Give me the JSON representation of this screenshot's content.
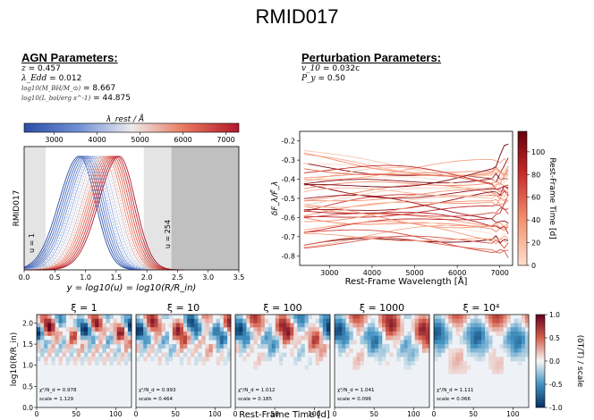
{
  "title": "RMID017",
  "agn": {
    "heading": "AGN Parameters:",
    "rows": [
      {
        "label": "z",
        "value": "= 0.457"
      },
      {
        "label": "λ_Edd",
        "value": "= 0.012"
      },
      {
        "label": "log10(M_BH/M_⊙)",
        "value": "= 8.667"
      },
      {
        "label": "log10(L_bol/erg s^-1)",
        "value": "= 44.875"
      }
    ]
  },
  "perturbation": {
    "heading": "Perturbation Parameters:",
    "rows": [
      {
        "label": "v_10",
        "value": "= 0.032c"
      },
      {
        "label": "P_y",
        "value": "= 0.50"
      }
    ]
  },
  "colors": {
    "blue": "#2b4fa5",
    "red": "#b2182b",
    "dark_red": "#67000d",
    "grey": "#c0c0c0",
    "light_grey": "#e4e4e4"
  },
  "chart_data": [
    {
      "type": "line",
      "name": "response-kernels",
      "title": "",
      "colorbar_label": "λ_rest / Å",
      "colorbar_ticks": [
        "3000",
        "4000",
        "5000",
        "6000",
        "7000"
      ],
      "colorbar_range": [
        2300,
        7300
      ],
      "xlabel": "y = log10(u) = log10(R/R_in)",
      "ylabel": "RMID017",
      "xlim": [
        0.0,
        3.5
      ],
      "xticks": [
        "0.0",
        "0.5",
        "1.0",
        "1.5",
        "2.0",
        "2.5",
        "3.0",
        "3.5"
      ],
      "annotations": [
        "u = 1",
        "u = 254"
      ],
      "shaded_regions": [
        {
          "from": 0.0,
          "to": 0.35,
          "shade": "light"
        },
        {
          "from": 1.95,
          "to": 2.4,
          "shade": "light"
        },
        {
          "from": 2.4,
          "to": 3.5,
          "shade": "dark"
        }
      ],
      "curves": {
        "count": 20,
        "peak_y_min": 0.9,
        "peak_y_max": 1.55,
        "lambda_min": 2300,
        "lambda_max": 7300
      }
    },
    {
      "type": "line",
      "name": "perturbation-spectra",
      "xlabel": "Rest-Frame Wavelength [Å]",
      "ylabel": "δF_λ/F̄_λ",
      "xlim": [
        2300,
        7300
      ],
      "ylim": [
        -0.85,
        -0.15
      ],
      "xticks": [
        "3000",
        "4000",
        "5000",
        "6000",
        "7000"
      ],
      "yticks": [
        "-0.2",
        "-0.3",
        "-0.4",
        "-0.5",
        "-0.6",
        "-0.7",
        "-0.8"
      ],
      "colorbar_label": "Rest-Frame Time [d]",
      "colorbar_range": [
        0,
        118
      ],
      "colorbar_ticks": [
        "0",
        "20",
        "40",
        "60",
        "80",
        "100"
      ],
      "series_summary": {
        "count": 40,
        "time_range_days": [
          0,
          118
        ],
        "mean_level": -0.53,
        "spread": 0.12
      }
    },
    {
      "type": "heatmap",
      "name": "temperature-perturbation-maps",
      "ylabel": "log10(R/R_in)",
      "xlabel": "Rest-Frame Time [d]",
      "ylim": [
        0.0,
        2.2
      ],
      "yticks": [
        "0.0",
        "0.5",
        "1.0",
        "1.5",
        "2.0"
      ],
      "xlim": [
        0,
        120
      ],
      "xticks": [
        "0",
        "50",
        "100"
      ],
      "colorbar_label": "(δT/T) / scale",
      "colorbar_range": [
        -1.0,
        1.0
      ],
      "colorbar_ticks": [
        "1.0",
        "0.5",
        "0.0",
        "-0.5",
        "-1.0"
      ],
      "panels": [
        {
          "xi": "ξ = 1",
          "chi2": "χ²/N_d = 0.978",
          "scale": "scale = 1.129"
        },
        {
          "xi": "ξ = 10",
          "chi2": "χ²/N_d = 0.993",
          "scale": "scale = 0.464"
        },
        {
          "xi": "ξ = 100",
          "chi2": "χ²/N_d = 1.012",
          "scale": "scale = 0.185"
        },
        {
          "xi": "ξ = 1000",
          "chi2": "χ²/N_d = 1.041",
          "scale": "scale = 0.096"
        },
        {
          "xi": "ξ = 10⁴",
          "chi2": "χ²/N_d = 1.111",
          "scale": "scale = 0.066"
        }
      ]
    }
  ]
}
